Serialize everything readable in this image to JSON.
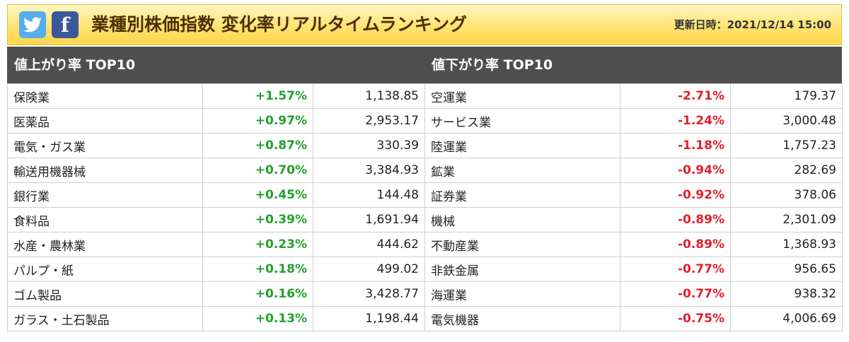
{
  "header": {
    "twitter_icon": "twitter-bird-icon",
    "facebook_icon": "facebook-f-icon",
    "title": "業種別株価指数 変化率リアルタイムランキング",
    "updated_label": "更新日時：",
    "updated_value": "2021/12/14 15:00"
  },
  "colors": {
    "up": "#22a02c",
    "down": "#e0202d",
    "header_bar": "#4f4f4f",
    "banner": "#ffdd5c"
  },
  "rising": {
    "heading": "値上がり率 TOP10",
    "rows": [
      {
        "name": "保険業",
        "rate": "+1.57%",
        "value": "1,138.85"
      },
      {
        "name": "医薬品",
        "rate": "+0.97%",
        "value": "2,953.17"
      },
      {
        "name": "電気・ガス業",
        "rate": "+0.87%",
        "value": "330.39"
      },
      {
        "name": "輸送用機器械",
        "rate": "+0.70%",
        "value": "3,384.93"
      },
      {
        "name": "銀行業",
        "rate": "+0.45%",
        "value": "144.48"
      },
      {
        "name": "食料品",
        "rate": "+0.39%",
        "value": "1,691.94"
      },
      {
        "name": "水産・農林業",
        "rate": "+0.23%",
        "value": "444.62"
      },
      {
        "name": "パルプ・紙",
        "rate": "+0.18%",
        "value": "499.02"
      },
      {
        "name": "ゴム製品",
        "rate": "+0.16%",
        "value": "3,428.77"
      },
      {
        "name": "ガラス・土石製品",
        "rate": "+0.13%",
        "value": "1,198.44"
      }
    ]
  },
  "falling": {
    "heading": "値下がり率 TOP10",
    "rows": [
      {
        "name": "空運業",
        "rate": "-2.71%",
        "value": "179.37"
      },
      {
        "name": "サービス業",
        "rate": "-1.24%",
        "value": "3,000.48"
      },
      {
        "name": "陸運業",
        "rate": "-1.18%",
        "value": "1,757.23"
      },
      {
        "name": "鉱業",
        "rate": "-0.94%",
        "value": "282.69"
      },
      {
        "name": "証券業",
        "rate": "-0.92%",
        "value": "378.06"
      },
      {
        "name": "機械",
        "rate": "-0.89%",
        "value": "2,301.09"
      },
      {
        "name": "不動産業",
        "rate": "-0.89%",
        "value": "1,368.93"
      },
      {
        "name": "非鉄金属",
        "rate": "-0.77%",
        "value": "956.65"
      },
      {
        "name": "海運業",
        "rate": "-0.77%",
        "value": "938.32"
      },
      {
        "name": "電気機器",
        "rate": "-0.75%",
        "value": "4,006.69"
      }
    ]
  }
}
